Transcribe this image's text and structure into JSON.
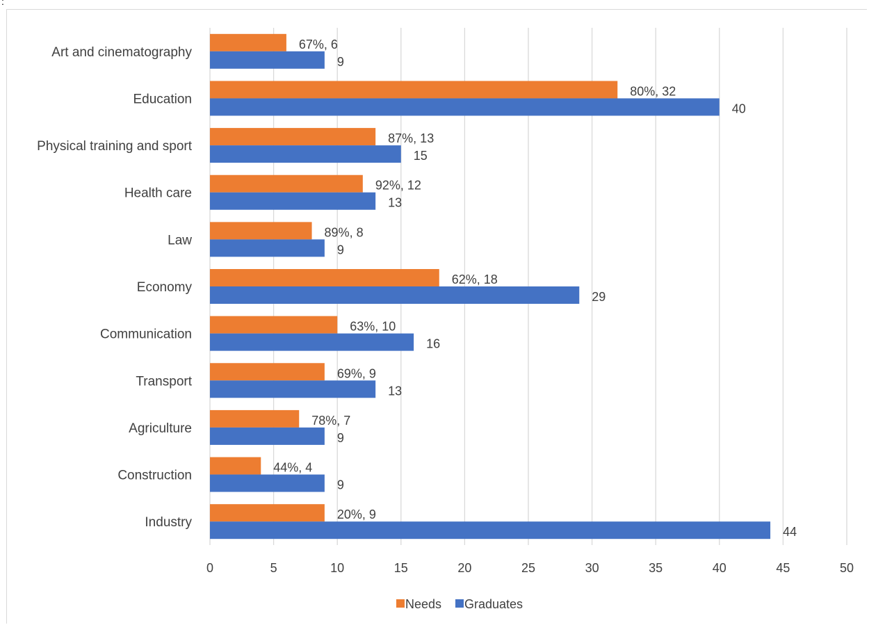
{
  "corner_mark": ":",
  "colors": {
    "needs": "#ED7D31",
    "graduates": "#4472C4",
    "grid": "#d9d9d9",
    "text": "#404040"
  },
  "chart_data": {
    "type": "bar",
    "orientation": "horizontal",
    "categories": [
      "Art and cinematography",
      "Education",
      "Physical training and sport",
      "Health care",
      "Law",
      "Economy",
      "Communication",
      "Transport",
      "Agriculture",
      "Construction",
      "Industry"
    ],
    "series": [
      {
        "name": "Needs",
        "values": [
          6,
          32,
          13,
          12,
          8,
          18,
          10,
          9,
          7,
          4,
          9
        ],
        "labels": [
          "67%, 6",
          "80%, 32",
          "87%, 13",
          "92%, 12",
          "89%, 8",
          "62%, 18",
          "63%, 10",
          "69%, 9",
          "78%, 7",
          "44%, 4",
          "20%, 9"
        ]
      },
      {
        "name": "Graduates",
        "values": [
          9,
          40,
          15,
          13,
          9,
          29,
          16,
          13,
          9,
          9,
          44
        ],
        "labels": [
          "9",
          "40",
          "15",
          "13",
          "9",
          "29",
          "16",
          "13",
          "9",
          "9",
          "44"
        ]
      }
    ],
    "xlim": [
      0,
      50
    ],
    "xticks": [
      "0",
      "5",
      "10",
      "15",
      "20",
      "25",
      "30",
      "35",
      "40",
      "45",
      "50"
    ],
    "grid": true,
    "legend_position": "bottom"
  }
}
